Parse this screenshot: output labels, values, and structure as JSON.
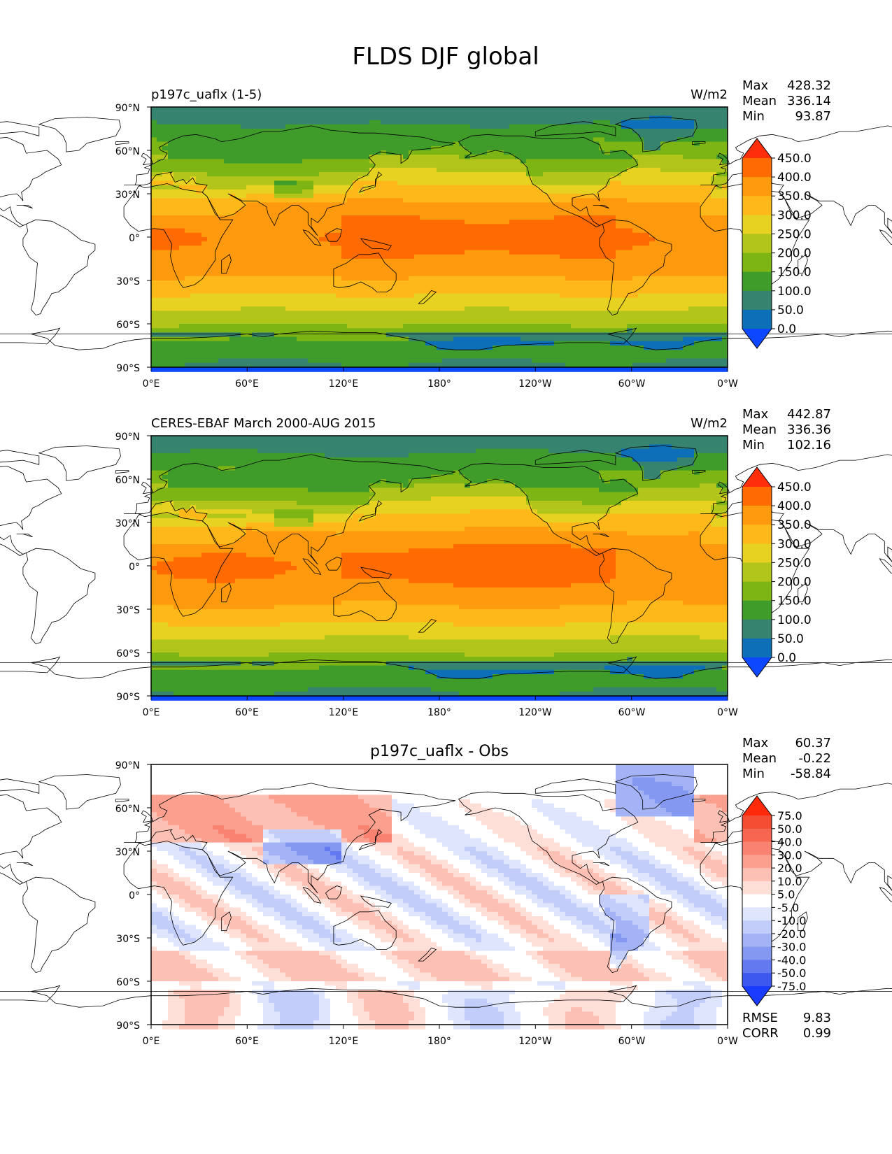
{
  "figure": {
    "title": "FLDS DJF global"
  },
  "chart_data": [
    {
      "type": "heatmap",
      "title": "p197c_uaflx (1-5)",
      "units": "W/m2",
      "stats": {
        "max_label": "Max",
        "max": "428.32",
        "mean_label": "Mean",
        "mean": "336.14",
        "min_label": "Min",
        "min": "93.87"
      },
      "y_ticks": [
        "90°N",
        "60°N",
        "30°N",
        "0°",
        "30°S",
        "60°S",
        "90°S"
      ],
      "x_ticks": [
        "0°E",
        "60°E",
        "120°E",
        "180°",
        "120°W",
        "60°W",
        "0°W"
      ],
      "xlim": [
        0,
        360
      ],
      "ylim": [
        -90,
        90
      ],
      "colorbar": {
        "labels": [
          "450.0",
          "400.0",
          "350.0",
          "300.0",
          "250.0",
          "200.0",
          "150.0",
          "100.0",
          "50.0",
          "0.0"
        ],
        "colors": [
          "#ff2e0a",
          "#ff6b00",
          "#ff9a0f",
          "#ffb81a",
          "#e8d221",
          "#b2c51b",
          "#7cb514",
          "#3f9b2a",
          "#36846f",
          "#0d6fb8",
          "#0d47ff"
        ]
      }
    },
    {
      "type": "heatmap",
      "title": "CERES-EBAF March 2000-AUG 2015",
      "units": "W/m2",
      "stats": {
        "max_label": "Max",
        "max": "442.87",
        "mean_label": "Mean",
        "mean": "336.36",
        "min_label": "Min",
        "min": "102.16"
      },
      "y_ticks": [
        "90°N",
        "60°N",
        "30°N",
        "0°",
        "30°S",
        "60°S",
        "90°S"
      ],
      "x_ticks": [
        "0°E",
        "60°E",
        "120°E",
        "180°",
        "120°W",
        "60°W",
        "0°W"
      ],
      "xlim": [
        0,
        360
      ],
      "ylim": [
        -90,
        90
      ],
      "colorbar": {
        "labels": [
          "450.0",
          "400.0",
          "350.0",
          "300.0",
          "250.0",
          "200.0",
          "150.0",
          "100.0",
          "50.0",
          "0.0"
        ],
        "colors": [
          "#ff2e0a",
          "#ff6b00",
          "#ff9a0f",
          "#ffb81a",
          "#e8d221",
          "#b2c51b",
          "#7cb514",
          "#3f9b2a",
          "#36846f",
          "#0d6fb8",
          "#0d47ff"
        ]
      }
    },
    {
      "type": "heatmap",
      "title": "p197c_uaflx - Obs",
      "stats": {
        "max_label": "Max",
        "max": "60.37",
        "mean_label": "Mean",
        "mean": "-0.22",
        "min_label": "Min",
        "min": "-58.84"
      },
      "y_ticks": [
        "90°N",
        "60°N",
        "30°N",
        "0°",
        "30°S",
        "60°S",
        "90°S"
      ],
      "x_ticks": [
        "0°E",
        "60°E",
        "120°E",
        "180°",
        "120°W",
        "60°W",
        "0°W"
      ],
      "xlim": [
        0,
        360
      ],
      "ylim": [
        -90,
        90
      ],
      "colorbar": {
        "labels": [
          "75.0",
          "50.0",
          "40.0",
          "30.0",
          "20.0",
          "10.0",
          "5.0",
          "-5.0",
          "-10.0",
          "-20.0",
          "-30.0",
          "-40.0",
          "-50.0",
          "-75.0"
        ],
        "colors": [
          "#ff2a0a",
          "#f44b33",
          "#f76650",
          "#f98370",
          "#fba08f",
          "#fcc0b4",
          "#fddfd8",
          "#ffffff",
          "#dfe5fc",
          "#c3cdf9",
          "#a4b3f6",
          "#8498f2",
          "#6279ef",
          "#3c58ee",
          "#1a3cff"
        ]
      },
      "rmse_label": "RMSE",
      "rmse": "9.83",
      "corr_label": "CORR",
      "corr": "0.99"
    }
  ]
}
